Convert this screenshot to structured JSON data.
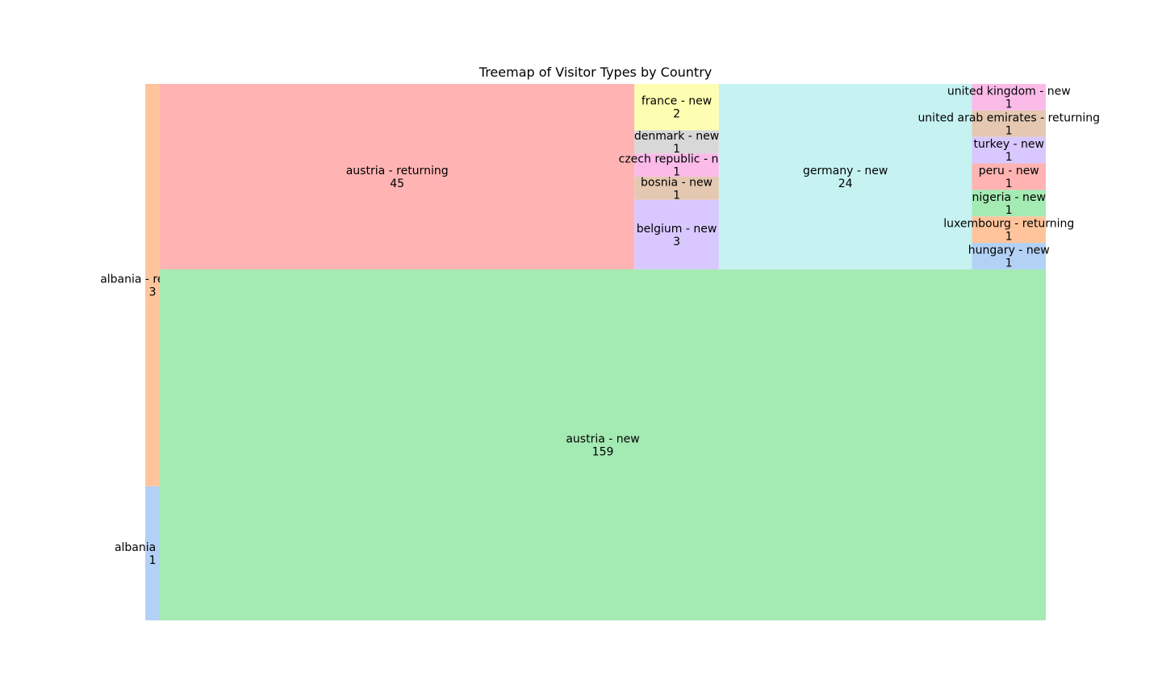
{
  "chart_data": {
    "type": "treemap",
    "title": "Treemap of Visitor Types by Country",
    "items": [
      {
        "label": "albania - new",
        "value": 1,
        "color": "#b3d1f5"
      },
      {
        "label": "albania - returning",
        "value": 3,
        "color": "#ffc49c"
      },
      {
        "label": "austria - new",
        "value": 159,
        "color": "#a4eab3"
      },
      {
        "label": "austria - returning",
        "value": 45,
        "color": "#ffb3b3"
      },
      {
        "label": "belgium - new",
        "value": 3,
        "color": "#d8c8ff"
      },
      {
        "label": "bosnia - new",
        "value": 1,
        "color": "#e4c8b2"
      },
      {
        "label": "czech republic - new",
        "value": 1,
        "color": "#fbbbe9"
      },
      {
        "label": "denmark - new",
        "value": 1,
        "color": "#d8d8d8"
      },
      {
        "label": "france - new",
        "value": 2,
        "color": "#fefeb2"
      },
      {
        "label": "germany - new",
        "value": 24,
        "color": "#c6f2f2"
      },
      {
        "label": "hungary - new",
        "value": 1,
        "color": "#b3d1f5"
      },
      {
        "label": "luxembourg - returning",
        "value": 1,
        "color": "#ffc49c"
      },
      {
        "label": "nigeria - new",
        "value": 1,
        "color": "#a4eab3"
      },
      {
        "label": "peru - new",
        "value": 1,
        "color": "#ffb3b3"
      },
      {
        "label": "turkey - new",
        "value": 1,
        "color": "#d8c8ff"
      },
      {
        "label": "united arab emirates - returning",
        "value": 1,
        "color": "#e4c8b2"
      },
      {
        "label": "united kingdom - new",
        "value": 1,
        "color": "#fbbbe9"
      }
    ]
  }
}
